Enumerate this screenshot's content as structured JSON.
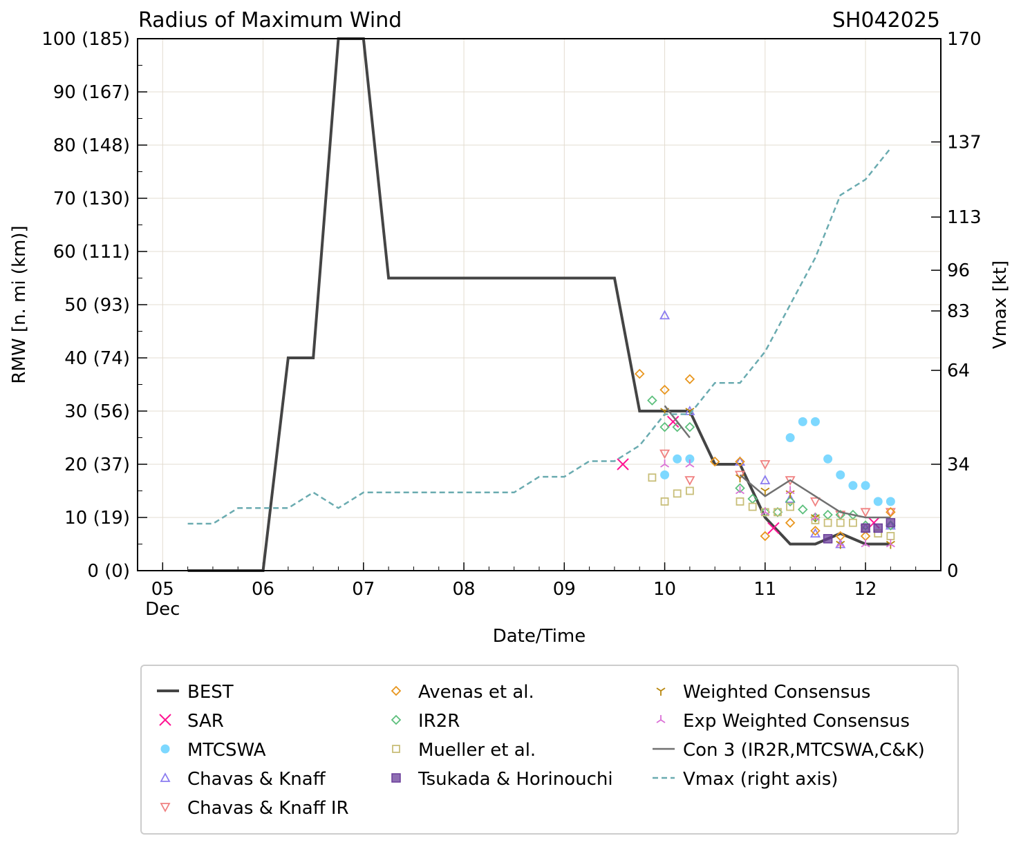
{
  "chart_data": {
    "type": "line",
    "title": "Radius of Maximum Wind",
    "title_right": "SH042025",
    "xlabel": "Date/Time",
    "ylabel": "RMW [n. mi (km)]",
    "ylabel_right": "Vmax [kt]",
    "ylim": [
      0,
      100
    ],
    "ylim_right": [
      0,
      170
    ],
    "xlim": [
      "12-04 18:00",
      "12-12 18:00"
    ],
    "grid": true,
    "legend_placement": "below",
    "x_ticks": [
      {
        "t": "12-05 00:00",
        "label": "05",
        "sub": "Dec"
      },
      {
        "t": "12-06 00:00",
        "label": "06"
      },
      {
        "t": "12-07 00:00",
        "label": "07"
      },
      {
        "t": "12-08 00:00",
        "label": "08"
      },
      {
        "t": "12-09 00:00",
        "label": "09"
      },
      {
        "t": "12-10 00:00",
        "label": "10"
      },
      {
        "t": "12-11 00:00",
        "label": "11"
      },
      {
        "t": "12-12 00:00",
        "label": "12"
      }
    ],
    "y_ticks": [
      {
        "v": 0,
        "label": "0 (0)"
      },
      {
        "v": 10,
        "label": "10 (19)"
      },
      {
        "v": 20,
        "label": "20 (37)"
      },
      {
        "v": 30,
        "label": "30 (56)"
      },
      {
        "v": 40,
        "label": "40 (74)"
      },
      {
        "v": 50,
        "label": "50 (93)"
      },
      {
        "v": 60,
        "label": "60 (111)"
      },
      {
        "v": 70,
        "label": "70 (130)"
      },
      {
        "v": 80,
        "label": "80 (148)"
      },
      {
        "v": 90,
        "label": "90 (167)"
      },
      {
        "v": 100,
        "label": "100 (185)"
      }
    ],
    "y_ticks_right": [
      0,
      34,
      64,
      83,
      96,
      113,
      137,
      170
    ],
    "series": [
      {
        "name": "BEST",
        "kind": "line",
        "color": "#444444",
        "points": [
          [
            "12-05 06:00",
            0
          ],
          [
            "12-06 00:00",
            0
          ],
          [
            "12-06 06:00",
            40
          ],
          [
            "12-06 12:00",
            40
          ],
          [
            "12-06 18:00",
            100
          ],
          [
            "12-07 00:00",
            100
          ],
          [
            "12-07 06:00",
            55
          ],
          [
            "12-09 12:00",
            55
          ],
          [
            "12-09 18:00",
            30
          ],
          [
            "12-10 06:00",
            30
          ],
          [
            "12-10 12:00",
            20
          ],
          [
            "12-10 18:00",
            20
          ],
          [
            "12-11 00:00",
            10
          ],
          [
            "12-11 06:00",
            5
          ],
          [
            "12-11 12:00",
            5
          ],
          [
            "12-11 18:00",
            7
          ],
          [
            "12-12 00:00",
            5
          ],
          [
            "12-12 06:00",
            5
          ]
        ]
      },
      {
        "name": "SAR",
        "kind": "x",
        "color": "#ff1493",
        "points": [
          [
            "12-09 14:00",
            20
          ],
          [
            "12-10 02:00",
            28
          ],
          [
            "12-11 02:00",
            8
          ],
          [
            "12-12 02:00",
            9
          ]
        ]
      },
      {
        "name": "MTCSWA",
        "kind": "circle",
        "color": "#7dd8ff",
        "points": [
          [
            "12-10 00:00",
            18
          ],
          [
            "12-10 03:00",
            21
          ],
          [
            "12-10 06:00",
            21
          ],
          [
            "12-11 06:00",
            25
          ],
          [
            "12-11 09:00",
            28
          ],
          [
            "12-11 12:00",
            28
          ],
          [
            "12-11 15:00",
            21
          ],
          [
            "12-11 18:00",
            18
          ],
          [
            "12-11 21:00",
            16
          ],
          [
            "12-12 00:00",
            16
          ],
          [
            "12-12 03:00",
            13
          ],
          [
            "12-12 06:00",
            13
          ]
        ]
      },
      {
        "name": "Chavas & Knaff",
        "kind": "tri-up",
        "color": "#8b7cf0",
        "points": [
          [
            "12-10 00:00",
            48
          ],
          [
            "12-10 06:00",
            30
          ],
          [
            "12-10 18:00",
            20.5
          ],
          [
            "12-11 00:00",
            17
          ],
          [
            "12-11 06:00",
            13.5
          ],
          [
            "12-11 12:00",
            7
          ],
          [
            "12-11 18:00",
            5
          ],
          [
            "12-12 00:00",
            8
          ],
          [
            "12-12 06:00",
            8.5
          ]
        ]
      },
      {
        "name": "Chavas & Knaff IR",
        "kind": "tri-down",
        "color": "#f08080",
        "points": [
          [
            "12-10 00:00",
            22
          ],
          [
            "12-10 06:00",
            17
          ],
          [
            "12-10 18:00",
            18
          ],
          [
            "12-11 00:00",
            20
          ],
          [
            "12-11 06:00",
            17
          ],
          [
            "12-11 12:00",
            13
          ],
          [
            "12-11 18:00",
            10.5
          ],
          [
            "12-12 00:00",
            11
          ],
          [
            "12-12 06:00",
            11
          ]
        ]
      },
      {
        "name": "Avenas et al.",
        "kind": "diamond",
        "color": "#e8961e",
        "points": [
          [
            "12-09 18:00",
            37
          ],
          [
            "12-10 00:00",
            34
          ],
          [
            "12-10 06:00",
            36
          ],
          [
            "12-10 12:00",
            20.5
          ],
          [
            "12-10 18:00",
            20.5
          ],
          [
            "12-11 00:00",
            6.5
          ],
          [
            "12-11 06:00",
            9
          ],
          [
            "12-11 12:00",
            7.5
          ],
          [
            "12-11 18:00",
            6.5
          ],
          [
            "12-12 00:00",
            6.5
          ],
          [
            "12-12 06:00",
            11
          ]
        ]
      },
      {
        "name": "IR2R",
        "kind": "diamond",
        "color": "#5cbf7c",
        "points": [
          [
            "12-09 21:00",
            32
          ],
          [
            "12-10 00:00",
            27
          ],
          [
            "12-10 03:00",
            27
          ],
          [
            "12-10 06:00",
            27
          ],
          [
            "12-10 18:00",
            15.5
          ],
          [
            "12-10 21:00",
            13.5
          ],
          [
            "12-11 00:00",
            11
          ],
          [
            "12-11 03:00",
            11
          ],
          [
            "12-11 06:00",
            13
          ],
          [
            "12-11 09:00",
            11.5
          ],
          [
            "12-11 12:00",
            10
          ],
          [
            "12-11 15:00",
            10.5
          ],
          [
            "12-11 18:00",
            10.5
          ],
          [
            "12-11 21:00",
            10.5
          ],
          [
            "12-12 00:00",
            8.5
          ],
          [
            "12-12 06:00",
            8.5
          ]
        ]
      },
      {
        "name": "Mueller et al.",
        "kind": "square",
        "color": "#c8be78",
        "points": [
          [
            "12-09 21:00",
            17.5
          ],
          [
            "12-10 00:00",
            13
          ],
          [
            "12-10 03:00",
            14.5
          ],
          [
            "12-10 06:00",
            15
          ],
          [
            "12-10 18:00",
            13
          ],
          [
            "12-10 21:00",
            12
          ],
          [
            "12-11 00:00",
            11
          ],
          [
            "12-11 03:00",
            11
          ],
          [
            "12-11 06:00",
            12
          ],
          [
            "12-11 12:00",
            9.5
          ],
          [
            "12-11 15:00",
            9
          ],
          [
            "12-11 18:00",
            9
          ],
          [
            "12-11 21:00",
            9
          ],
          [
            "12-12 00:00",
            8
          ],
          [
            "12-12 03:00",
            7
          ],
          [
            "12-12 06:00",
            6.5
          ]
        ]
      },
      {
        "name": "Tsukada & Horinouchi",
        "kind": "square-filled",
        "color": "#6a3d9a",
        "points": [
          [
            "12-11 15:00",
            6
          ],
          [
            "12-12 00:00",
            8
          ],
          [
            "12-12 03:00",
            8
          ],
          [
            "12-12 06:00",
            9
          ]
        ]
      },
      {
        "name": "Weighted Consensus",
        "kind": "y-down",
        "color": "#b8860b",
        "points": [
          [
            "12-10 00:00",
            30
          ],
          [
            "12-10 06:00",
            30
          ],
          [
            "12-10 18:00",
            17.5
          ],
          [
            "12-11 00:00",
            15
          ],
          [
            "12-11 06:00",
            14.5
          ],
          [
            "12-11 12:00",
            10
          ],
          [
            "12-11 18:00",
            5
          ],
          [
            "12-12 06:00",
            5
          ]
        ]
      },
      {
        "name": "Exp Weighted Consensus",
        "kind": "y-up",
        "color": "#da70d6",
        "points": [
          [
            "12-10 00:00",
            20
          ],
          [
            "12-10 06:00",
            20
          ],
          [
            "12-10 18:00",
            15
          ],
          [
            "12-11 00:00",
            11
          ],
          [
            "12-11 06:00",
            15
          ],
          [
            "12-11 12:00",
            10
          ],
          [
            "12-11 18:00",
            5
          ],
          [
            "12-12 00:00",
            5
          ],
          [
            "12-12 06:00",
            5
          ]
        ]
      },
      {
        "name": "Con 3 (IR2R,MTCSWA,C&K)",
        "kind": "thinline",
        "color": "#707070",
        "points": [
          [
            "12-10 00:00",
            31
          ],
          [
            "12-10 06:00",
            25
          ]
        ],
        "points2": [
          [
            "12-10 18:00",
            18
          ],
          [
            "12-11 00:00",
            14
          ],
          [
            "12-11 06:00",
            17
          ],
          [
            "12-11 18:00",
            11
          ],
          [
            "12-12 00:00",
            10
          ],
          [
            "12-12 06:00",
            10
          ]
        ]
      },
      {
        "name": "Vmax (right axis)",
        "kind": "dashed",
        "axis": "right",
        "color": "#6aabb0",
        "points": [
          [
            "12-05 06:00",
            15
          ],
          [
            "12-05 12:00",
            15
          ],
          [
            "12-05 18:00",
            20
          ],
          [
            "12-06 06:00",
            20
          ],
          [
            "12-06 12:00",
            25
          ],
          [
            "12-06 18:00",
            20
          ],
          [
            "12-07 00:00",
            25
          ],
          [
            "12-08 12:00",
            25
          ],
          [
            "12-08 18:00",
            30
          ],
          [
            "12-09 00:00",
            30
          ],
          [
            "12-09 06:00",
            35
          ],
          [
            "12-09 12:00",
            35
          ],
          [
            "12-09 18:00",
            40
          ],
          [
            "12-10 00:00",
            50
          ],
          [
            "12-10 06:00",
            50
          ],
          [
            "12-10 12:00",
            60
          ],
          [
            "12-10 18:00",
            60
          ],
          [
            "12-11 00:00",
            70
          ],
          [
            "12-11 06:00",
            85
          ],
          [
            "12-11 12:00",
            100
          ],
          [
            "12-11 18:00",
            120
          ],
          [
            "12-12 00:00",
            125
          ],
          [
            "12-12 06:00",
            135
          ]
        ]
      }
    ]
  }
}
